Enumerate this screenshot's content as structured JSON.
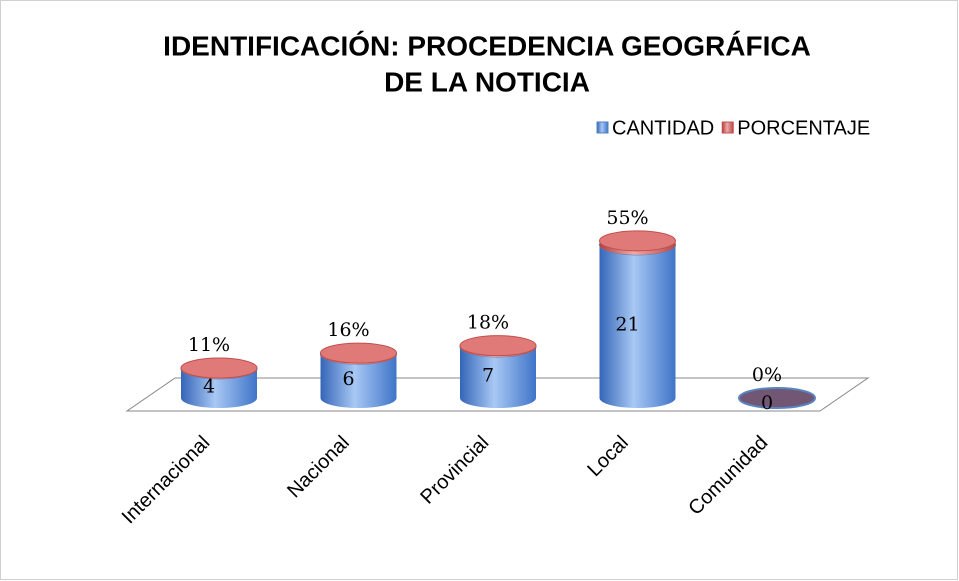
{
  "chart_data": {
    "type": "stacked-cylinder",
    "title": [
      "IDENTIFICACIÓN: PROCEDENCIA GEOGRÁFICA",
      "DE LA NOTICIA"
    ],
    "categories": [
      "Internacional",
      "Nacional",
      "Provincial",
      "Local",
      "Comunidad"
    ],
    "series": [
      {
        "name": "CANTIDAD",
        "color": "#4f81bd",
        "values": [
          4,
          6,
          7,
          21,
          0
        ]
      },
      {
        "name": "PORCENTAJE",
        "color": "#c0504d",
        "values": [
          0.11,
          0.16,
          0.18,
          0.55,
          0
        ],
        "value_labels": [
          "11%",
          "16%",
          "18%",
          "55%",
          "0%"
        ]
      }
    ],
    "ylim": [
      0,
      24
    ],
    "legend": "top-right"
  }
}
